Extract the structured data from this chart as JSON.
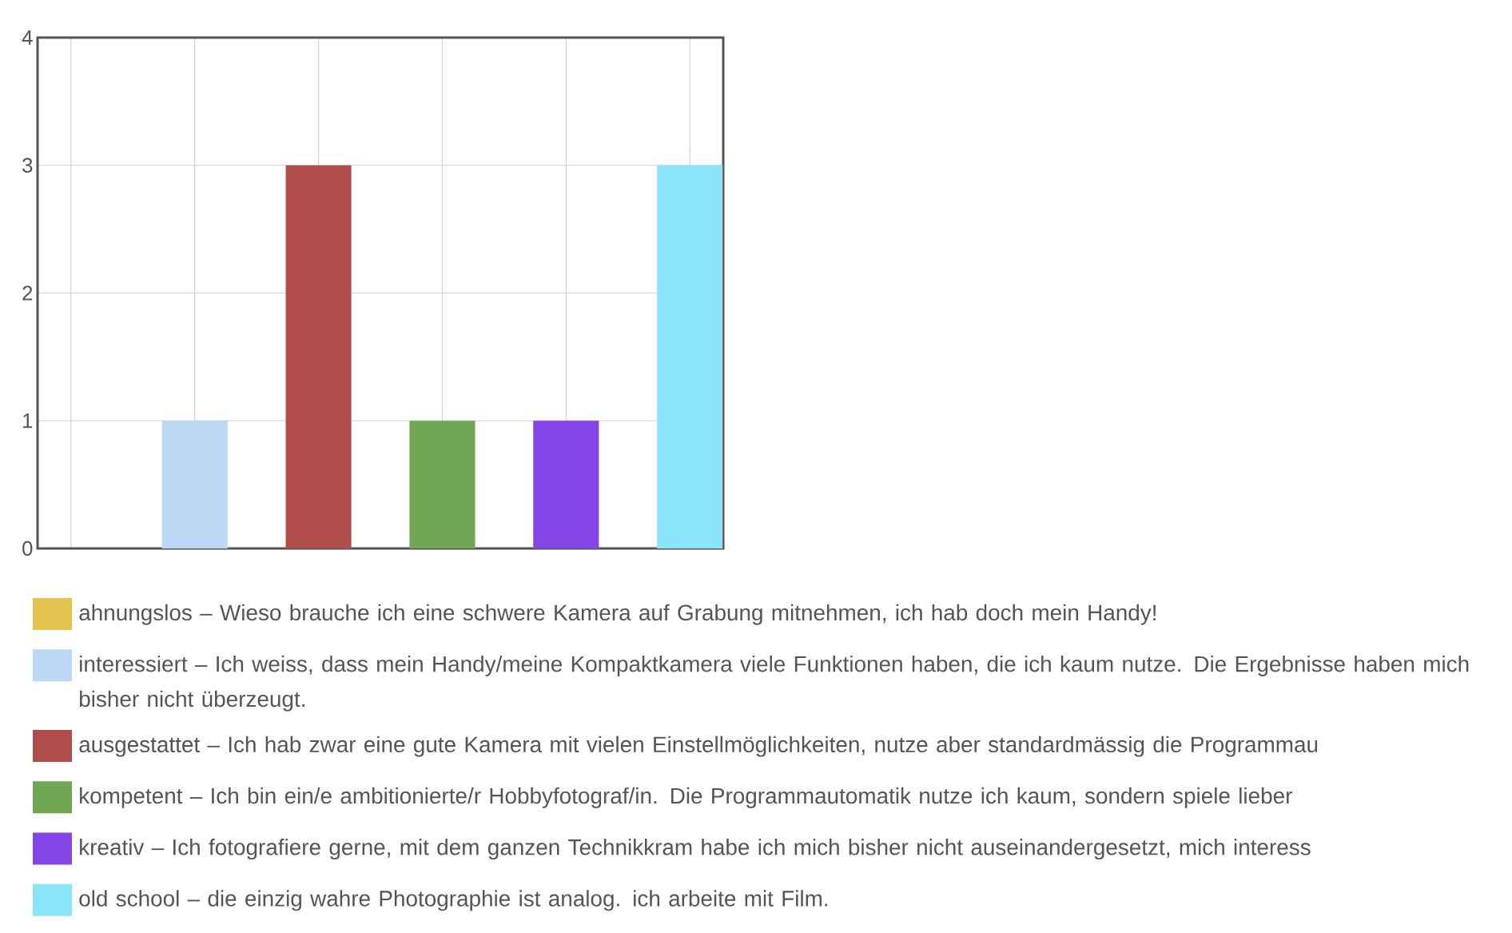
{
  "chart_data": {
    "type": "bar",
    "categories": [
      null,
      null,
      null,
      null,
      null,
      null
    ],
    "series": [
      {
        "name": "ahnungslos – Wieso brauche ich eine schwere Kamera auf Grabung mitnehmen, ich hab doch mein Handy!",
        "color": "#e2c34f",
        "values": [
          0,
          null,
          null,
          null,
          null,
          null
        ]
      },
      {
        "name": "interessiert – Ich weiss, dass mein Handy/meine Kompaktkamera viele Funktionen haben, die ich kaum nutze. Die Ergebnisse haben mich bisher nicht überzeugt.",
        "color": "#bdd8f5",
        "values": [
          null,
          1,
          null,
          null,
          null,
          null
        ]
      },
      {
        "name": "ausgestattet – Ich hab zwar eine gute Kamera mit vielen Einstellmöglichkeiten, nutze aber standardmässig die Programmau",
        "color": "#b04d4b",
        "values": [
          null,
          null,
          3,
          null,
          null,
          null
        ]
      },
      {
        "name": "kompetent – Ich bin ein/e ambitionierte/r Hobbyfotograf/in. Die Programmautomatik nutze ich kaum, sondern spiele lieber",
        "color": "#71a655",
        "values": [
          null,
          null,
          null,
          1,
          null,
          null
        ]
      },
      {
        "name": "kreativ – Ich fotografiere gerne, mit dem ganzen Technikkram habe ich mich bisher nicht auseinandergesetzt, mich interess",
        "color": "#8345e6",
        "values": [
          null,
          null,
          null,
          null,
          1,
          null
        ]
      },
      {
        "name": "old school – die einzig wahre Photographie ist analog. ich arbeite mit Film.",
        "color": "#89e4fc",
        "values": [
          null,
          null,
          null,
          null,
          null,
          3
        ]
      }
    ],
    "ylim": [
      0,
      4
    ],
    "yticks": [
      0,
      1,
      2,
      3,
      4
    ],
    "grid": true,
    "legend": "bottom"
  }
}
